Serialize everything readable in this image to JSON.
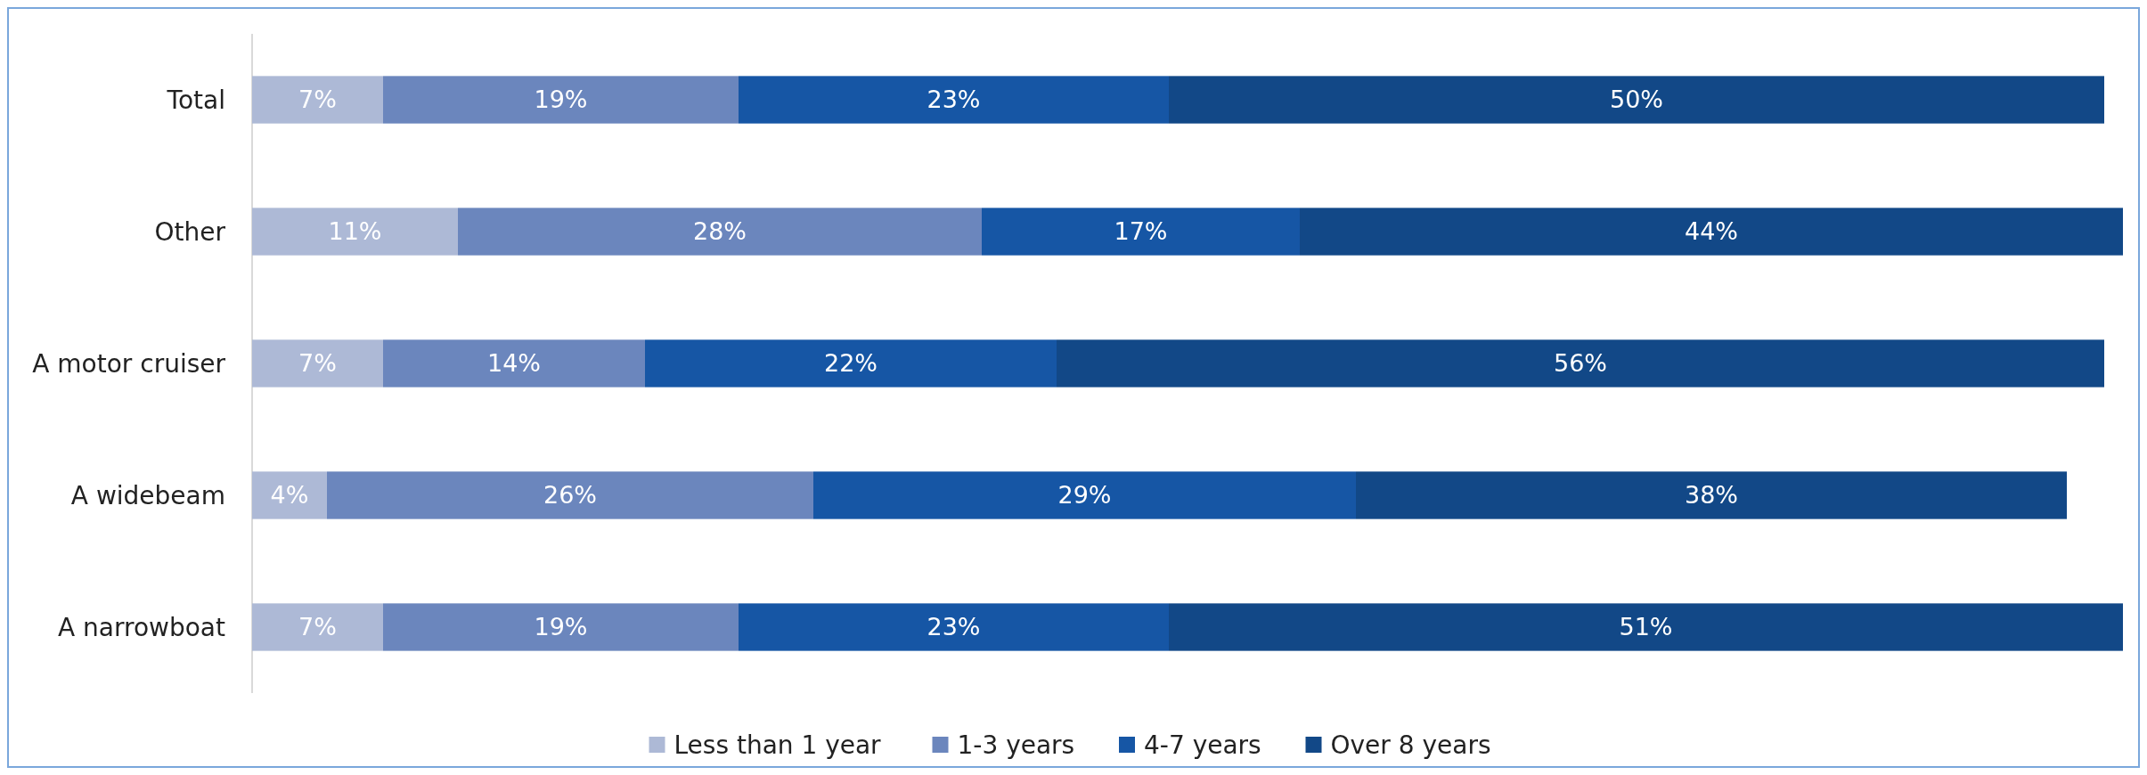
{
  "chart_data": {
    "type": "bar",
    "orientation": "horizontal",
    "stacked": true,
    "legend": "bottom",
    "categories": [
      "Total",
      "Other",
      "A motor cruiser",
      "A widebeam",
      "A narrowboat"
    ],
    "series": [
      {
        "name": "Less than 1 year",
        "color": "#adb9d6",
        "values": [
          7,
          11,
          7,
          4,
          7
        ],
        "value_labels": [
          "7%",
          "11%",
          "7%",
          "4%",
          "7%"
        ]
      },
      {
        "name": "1-3 years",
        "color": "#6b86bd",
        "values": [
          19,
          28,
          14,
          26,
          19
        ],
        "value_labels": [
          "19%",
          "28%",
          "14%",
          "26%",
          "19%"
        ]
      },
      {
        "name": "4-7 years",
        "color": "#1656a5",
        "values": [
          23,
          17,
          22,
          29,
          23
        ],
        "value_labels": [
          "23%",
          "17%",
          "22%",
          "29%",
          "23%"
        ]
      },
      {
        "name": "Over 8 years",
        "color": "#124887",
        "values": [
          50,
          44,
          56,
          38,
          51
        ],
        "value_labels": [
          "50%",
          "44%",
          "56%",
          "38%",
          "51%"
        ]
      }
    ]
  }
}
